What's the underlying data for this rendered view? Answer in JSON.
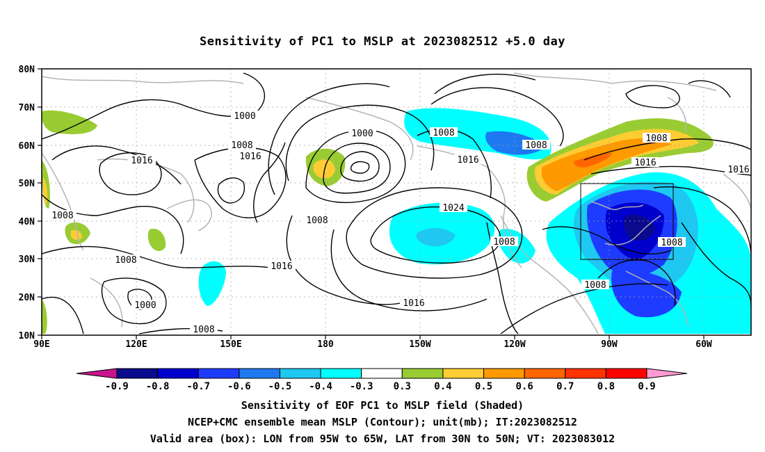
{
  "title": "Sensitivity of PC1 to MSLP at 2023082512 +5.0 day",
  "lat_labels": [
    "80N",
    "70N",
    "60N",
    "50N",
    "40N",
    "30N",
    "20N",
    "10N"
  ],
  "lon_labels": [
    "90E",
    "120E",
    "150E",
    "180",
    "150W",
    "120W",
    "90W",
    "60W"
  ],
  "colorbar": {
    "ticks": [
      "-0.9",
      "-0.8",
      "-0.7",
      "-0.6",
      "-0.5",
      "-0.4",
      "-0.3",
      "0.3",
      "0.4",
      "0.5",
      "0.6",
      "0.7",
      "0.8",
      "0.9"
    ],
    "colors": [
      "#0a0a8c",
      "#0000cd",
      "#1e3cff",
      "#1e78f0",
      "#1ec8f0",
      "#00ffff",
      "#ffffff",
      "#99cc33",
      "#ffcc33",
      "#ff9900",
      "#ff6600",
      "#ff3300",
      "#ff0000"
    ],
    "low_end_color": "#c8148c",
    "high_end_color": "#ff9ad2"
  },
  "contour_labels": [
    "1000",
    "1000",
    "1008",
    "1016",
    "1008",
    "1016",
    "1008",
    "1008",
    "1016",
    "1008",
    "1024",
    "1016",
    "1008",
    "1008",
    "1016",
    "1016",
    "1008",
    "1008",
    "1016",
    "1008",
    "1000",
    "1008"
  ],
  "captions": {
    "line1": "Sensitivity of EOF PC1 to MSLP field (Shaded)",
    "line2": "NCEP+CMC ensemble mean MSLP (Contour); unit(mb); IT:2023082512",
    "line3": "Valid area (box): LON from 95W to 65W, LAT from 30N to 50N; VT: 2023083012"
  }
}
